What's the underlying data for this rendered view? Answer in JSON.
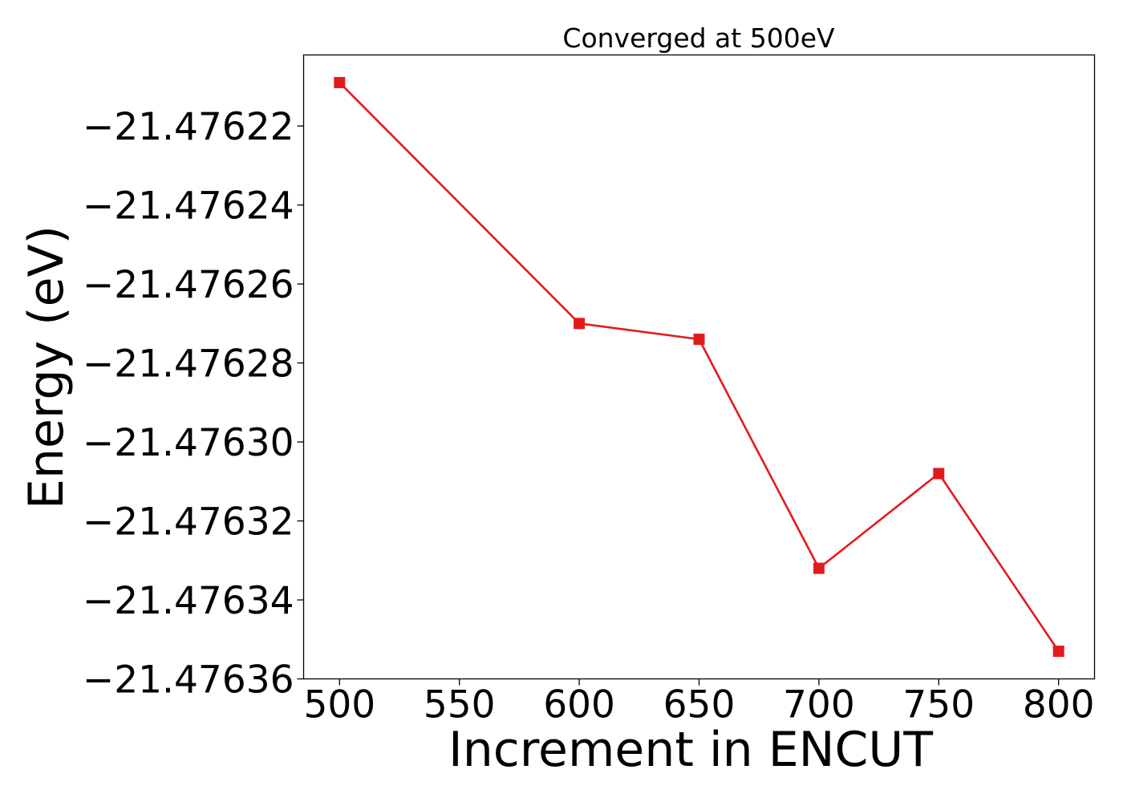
{
  "chart_data": {
    "type": "line",
    "title": "Converged at 500eV",
    "xlabel": "Increment in ENCUT",
    "ylabel": "Energy (eV)",
    "x": [
      500,
      600,
      650,
      700,
      750,
      800
    ],
    "series": [
      {
        "values": [
          -21.476209,
          -21.47627,
          -21.476274,
          -21.476332,
          -21.476308,
          -21.476353
        ],
        "color": "#e31a1c",
        "marker": "square"
      }
    ],
    "xlim": [
      485,
      815
    ],
    "ylim": [
      -21.47636,
      -21.476202
    ],
    "xticks": [
      500,
      550,
      600,
      650,
      700,
      750,
      800
    ],
    "xtick_labels": [
      "500",
      "550",
      "600",
      "650",
      "700",
      "750",
      "800"
    ],
    "yticks": [
      -21.47622,
      -21.47624,
      -21.47626,
      -21.47628,
      -21.4763,
      -21.47632,
      -21.47634,
      -21.47636
    ],
    "ytick_labels": [
      "−21.47622",
      "−21.47624",
      "−21.47626",
      "−21.47628",
      "−21.47630",
      "−21.47632",
      "−21.47634",
      "−21.47636"
    ],
    "grid": false,
    "legend": "none"
  }
}
